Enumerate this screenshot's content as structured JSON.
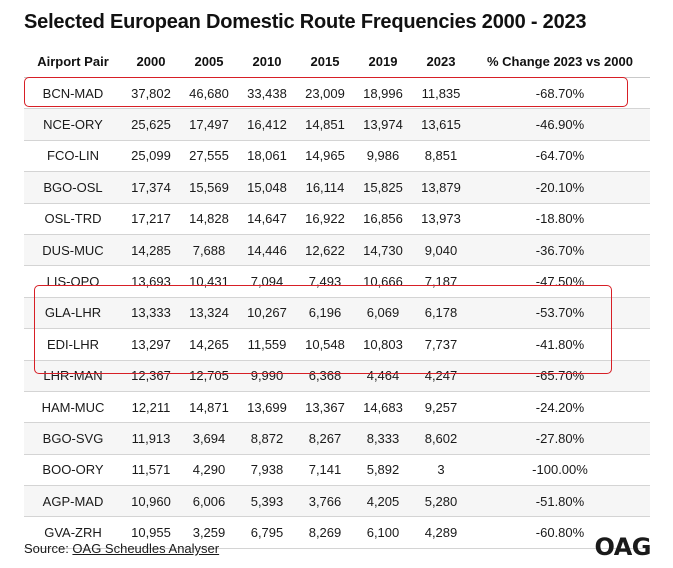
{
  "title": "Selected European Domestic Route Frequencies 2000 - 2023",
  "table": {
    "headers": [
      "Airport Pair",
      "2000",
      "2005",
      "2010",
      "2015",
      "2019",
      "2023",
      "% Change 2023 vs 2000"
    ],
    "rows": [
      [
        "BCN-MAD",
        "37,802",
        "46,680",
        "33,438",
        "23,009",
        "18,996",
        "11,835",
        "-68.70%"
      ],
      [
        "NCE-ORY",
        "25,625",
        "17,497",
        "16,412",
        "14,851",
        "13,974",
        "13,615",
        "-46.90%"
      ],
      [
        "FCO-LIN",
        "25,099",
        "27,555",
        "18,061",
        "14,965",
        "9,986",
        "8,851",
        "-64.70%"
      ],
      [
        "BGO-OSL",
        "17,374",
        "15,569",
        "15,048",
        "16,114",
        "15,825",
        "13,879",
        "-20.10%"
      ],
      [
        "OSL-TRD",
        "17,217",
        "14,828",
        "14,647",
        "16,922",
        "16,856",
        "13,973",
        "-18.80%"
      ],
      [
        "DUS-MUC",
        "14,285",
        "7,688",
        "14,446",
        "12,622",
        "14,730",
        "9,040",
        "-36.70%"
      ],
      [
        "LIS-OPO",
        "13,693",
        "10,431",
        "7,094",
        "7,493",
        "10,666",
        "7,187",
        "-47.50%"
      ],
      [
        "GLA-LHR",
        "13,333",
        "13,324",
        "10,267",
        "6,196",
        "6,069",
        "6,178",
        "-53.70%"
      ],
      [
        "EDI-LHR",
        "13,297",
        "14,265",
        "11,559",
        "10,548",
        "10,803",
        "7,737",
        "-41.80%"
      ],
      [
        "LHR-MAN",
        "12,367",
        "12,705",
        "9,990",
        "6,368",
        "4,464",
        "4,247",
        "-65.70%"
      ],
      [
        "HAM-MUC",
        "12,211",
        "14,871",
        "13,699",
        "13,367",
        "14,683",
        "9,257",
        "-24.20%"
      ],
      [
        "BGO-SVG",
        "11,913",
        "3,694",
        "8,872",
        "8,267",
        "8,333",
        "8,602",
        "-27.80%"
      ],
      [
        "BOO-ORY",
        "11,571",
        "4,290",
        "7,938",
        "7,141",
        "5,892",
        "3",
        "-100.00%"
      ],
      [
        "AGP-MAD",
        "10,960",
        "6,006",
        "5,393",
        "3,766",
        "4,205",
        "5,280",
        "-51.80%"
      ],
      [
        "GVA-ZRH",
        "10,955",
        "3,259",
        "6,795",
        "8,269",
        "6,100",
        "4,289",
        "-60.80%"
      ]
    ]
  },
  "highlight_color": "#d71f26",
  "footer": {
    "source_prefix": "Source: ",
    "source_link": "OAG Scheudles Analyser",
    "logo": "OAG"
  }
}
